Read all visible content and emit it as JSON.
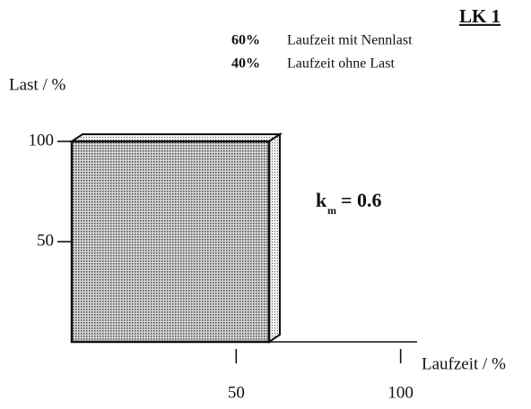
{
  "chart_data": {
    "type": "histogram",
    "title": "LK 1",
    "legend": [
      {
        "value": {
          "value": 60,
          "label": "60%"
        },
        "text": "Laufzeit mit Nennlast"
      },
      {
        "value": {
          "value": 40,
          "label": "40%"
        },
        "text": "Laufzeit ohne Last"
      }
    ],
    "annotation": {
      "symbol": "k",
      "subscript": "m",
      "text": "= 0.6"
    },
    "ylabel": "Last / %",
    "xlabel": "Laufzeit / %",
    "bins": [
      0,
      60
    ],
    "values": [
      100
    ],
    "color": "#b8b8b8",
    "xlim": [
      0,
      105
    ],
    "ylim": [
      0,
      100
    ],
    "xticks": [
      50,
      100
    ],
    "yticks": [
      50,
      100
    ]
  }
}
